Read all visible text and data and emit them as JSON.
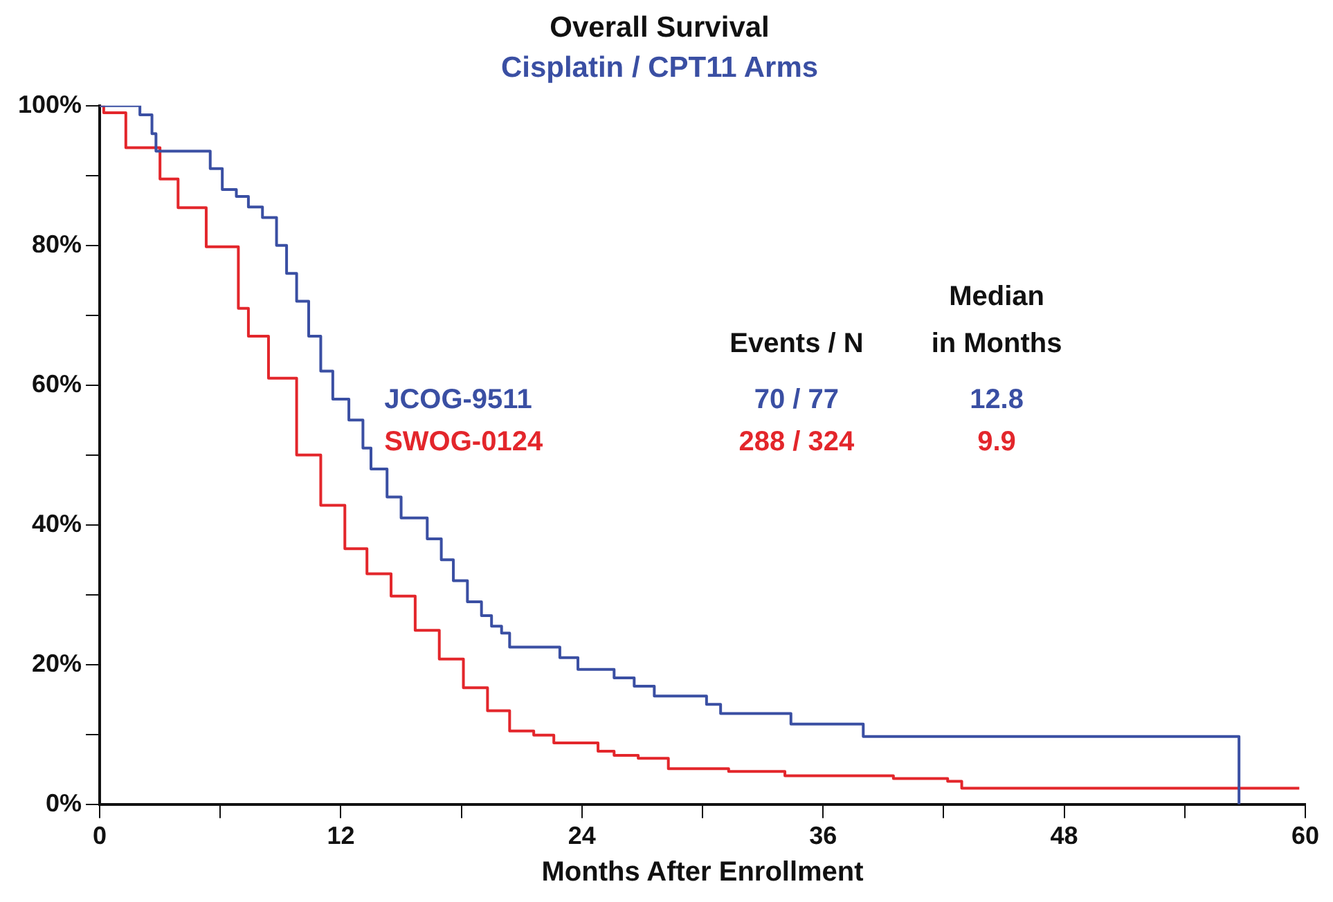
{
  "chart_data": {
    "type": "step",
    "title": "Overall Survival",
    "subtitle": "Cisplatin / CPT11 Arms",
    "xlabel": "Months After Enrollment",
    "annotations": [
      "Events / N",
      "Median",
      "in Months",
      "70 / 77",
      "12.8",
      "288 / 324",
      "9.9"
    ],
    "xlim": [
      0,
      60
    ],
    "xticks": [
      0,
      {
        "value": 6,
        "label": null
      },
      12,
      {
        "value": 18,
        "label": null
      },
      24,
      {
        "value": 30,
        "label": null
      },
      36,
      {
        "value": 42,
        "label": null
      },
      48,
      {
        "value": 54,
        "label": null
      },
      60
    ],
    "ylim": [
      0,
      100
    ],
    "yticks": [
      {
        "value": 0,
        "label": "0%"
      },
      {
        "value": 10,
        "label": null
      },
      {
        "value": 20,
        "label": "20%"
      },
      {
        "value": 30,
        "label": null
      },
      {
        "value": 40,
        "label": "40%"
      },
      {
        "value": 50,
        "label": null
      },
      {
        "value": 60,
        "label": "60%"
      },
      {
        "value": 70,
        "label": null
      },
      {
        "value": 80,
        "label": "80%"
      },
      {
        "value": 90,
        "label": null
      },
      {
        "value": 100,
        "label": "100%"
      }
    ],
    "grid": false,
    "legend": false,
    "marker": "none",
    "line_style": "solid",
    "series": [
      {
        "name": "JCOG-9511",
        "color": "#3a4fa3",
        "x": [
          0,
          2.0,
          2.6,
          2.8,
          5.3,
          5.5,
          6.1,
          6.8,
          7.4,
          8.1,
          8.8,
          9.3,
          9.8,
          10.4,
          11.0,
          11.6,
          12.4,
          13.1,
          13.5,
          14.3,
          15.0,
          16.3,
          17.0,
          17.6,
          18.3,
          19.0,
          19.5,
          20.0,
          20.4,
          22.9,
          23.8,
          25.6,
          26.6,
          27.6,
          30.2,
          30.9,
          34.4,
          38.0,
          56.7
        ],
        "values": [
          100,
          98.7,
          96,
          93.5,
          93.5,
          91,
          88,
          87,
          85.5,
          84,
          80,
          76,
          72,
          67,
          62,
          58,
          55,
          51,
          48,
          44,
          41,
          38,
          35,
          32,
          29,
          27,
          25.5,
          24.5,
          22.5,
          21,
          19.3,
          18.1,
          16.9,
          15.5,
          14.3,
          13,
          11.5,
          9.7,
          0
        ]
      },
      {
        "name": "SWOG-0124",
        "color": "#e3262b",
        "x": [
          0,
          0.2,
          1.3,
          3.0,
          3.9,
          5.3,
          6.9,
          7.4,
          8.4,
          9.8,
          11.0,
          12.2,
          13.3,
          14.5,
          15.7,
          16.9,
          18.1,
          19.3,
          20.4,
          21.6,
          22.6,
          24.8,
          25.6,
          26.8,
          28.3,
          31.3,
          34.1,
          39.5,
          42.2,
          42.9,
          59.7
        ],
        "values": [
          100,
          99,
          94,
          89.5,
          85.4,
          79.8,
          71,
          67,
          61,
          50,
          42.8,
          36.6,
          33,
          29.8,
          24.9,
          20.8,
          16.7,
          13.4,
          10.5,
          9.9,
          8.8,
          7.6,
          7.0,
          6.6,
          5.1,
          4.7,
          4.1,
          3.7,
          3.3,
          2.3,
          2.3
        ]
      }
    ]
  }
}
